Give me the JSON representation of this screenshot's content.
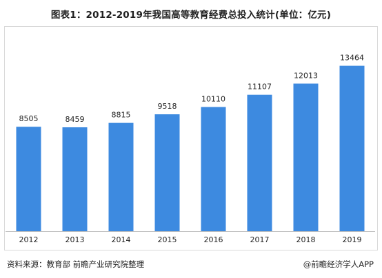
{
  "title": "图表1：2012-2019年我国高等教育经费总投入统计(单位：亿元)",
  "source": "资料来源：教育部 前瞻产业研究院整理",
  "credit": "@前瞻经济学人APP",
  "colors": {
    "bar": "#3d8ae0",
    "axis": "#bfbfbf",
    "label": "#222222"
  },
  "chart_data": {
    "type": "bar",
    "categories": [
      "2012",
      "2013",
      "2014",
      "2015",
      "2016",
      "2017",
      "2018",
      "2019"
    ],
    "values": [
      8505,
      8459,
      8815,
      9518,
      10110,
      11107,
      12013,
      13464
    ],
    "title": "图表1：2012-2019年我国高等教育经费总投入统计(单位：亿元)",
    "xlabel": "",
    "ylabel": "",
    "ylim": [
      0,
      14900
    ],
    "grid": false,
    "legend": "none"
  }
}
